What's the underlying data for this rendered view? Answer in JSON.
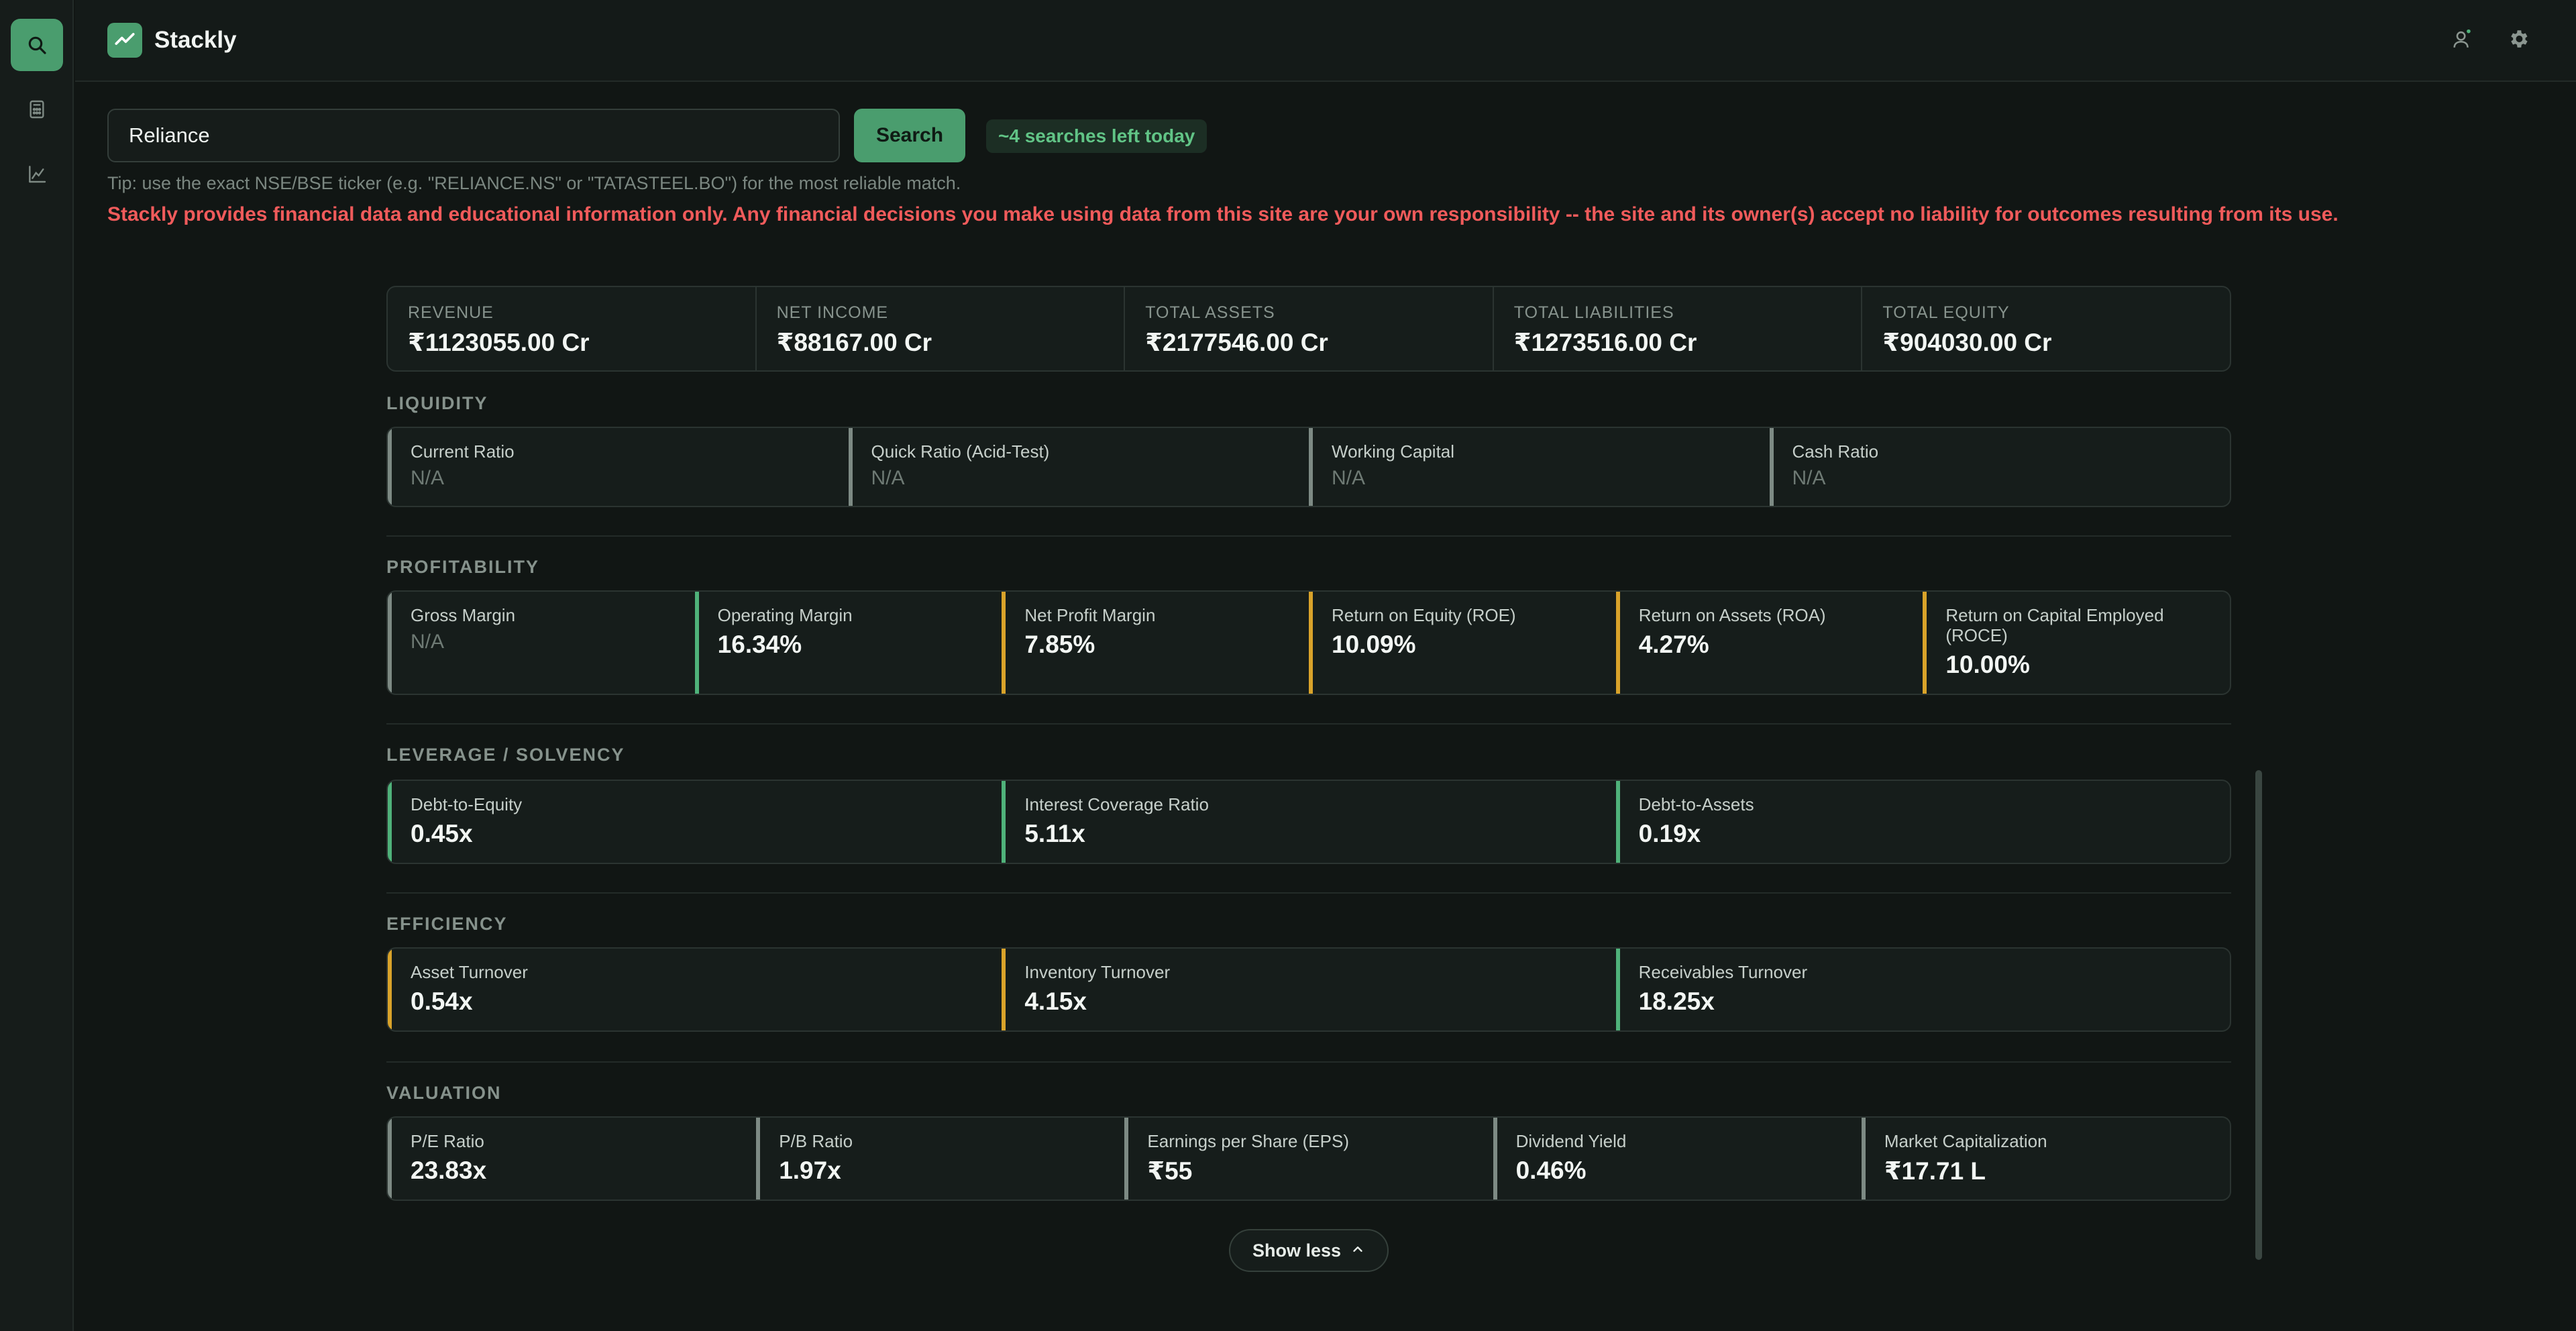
{
  "app": {
    "title": "Stackly"
  },
  "search": {
    "value": "Reliance",
    "button_label": "Search",
    "quota_label": "~4 searches left today"
  },
  "tip": "Tip: use the exact NSE/BSE ticker (e.g. \"RELIANCE.NS\" or \"TATASTEEL.BO\") for the most reliable match.",
  "disclaimer": "Stackly provides financial data and educational information only. Any financial decisions you make using data from this site are your own responsibility -- the site and its owner(s) accept no liability for outcomes resulting from its use.",
  "summary": [
    {
      "label": "Revenue",
      "value": "₹1123055.00 Cr"
    },
    {
      "label": "Net Income",
      "value": "₹88167.00 Cr"
    },
    {
      "label": "Total Assets",
      "value": "₹2177546.00 Cr"
    },
    {
      "label": "Total Liabilities",
      "value": "₹1273516.00 Cr"
    },
    {
      "label": "Total Equity",
      "value": "₹904030.00 Cr"
    }
  ],
  "sections": {
    "liquidity": {
      "title": "LIQUIDITY",
      "metrics": [
        {
          "label": "Current Ratio",
          "value": "N/A"
        },
        {
          "label": "Quick Ratio (Acid-Test)",
          "value": "N/A"
        },
        {
          "label": "Working Capital",
          "value": "N/A"
        },
        {
          "label": "Cash Ratio",
          "value": "N/A"
        }
      ]
    },
    "profitability": {
      "title": "PROFITABILITY",
      "metrics": [
        {
          "label": "Gross Margin",
          "value": "N/A"
        },
        {
          "label": "Operating Margin",
          "value": "16.34%"
        },
        {
          "label": "Net Profit Margin",
          "value": "7.85%"
        },
        {
          "label": "Return on Equity (ROE)",
          "value": "10.09%"
        },
        {
          "label": "Return on Assets (ROA)",
          "value": "4.27%"
        },
        {
          "label": "Return on Capital Employed (ROCE)",
          "value": "10.00%"
        }
      ]
    },
    "leverage": {
      "title": "LEVERAGE / SOLVENCY",
      "metrics": [
        {
          "label": "Debt-to-Equity",
          "value": "0.45x"
        },
        {
          "label": "Interest Coverage Ratio",
          "value": "5.11x"
        },
        {
          "label": "Debt-to-Assets",
          "value": "0.19x"
        }
      ]
    },
    "efficiency": {
      "title": "EFFICIENCY",
      "metrics": [
        {
          "label": "Asset Turnover",
          "value": "0.54x"
        },
        {
          "label": "Inventory Turnover",
          "value": "4.15x"
        },
        {
          "label": "Receivables Turnover",
          "value": "18.25x"
        }
      ]
    },
    "valuation": {
      "title": "VALUATION",
      "metrics": [
        {
          "label": "P/E Ratio",
          "value": "23.83x"
        },
        {
          "label": "P/B Ratio",
          "value": "1.97x"
        },
        {
          "label": "Earnings per Share (EPS)",
          "value": "₹55"
        },
        {
          "label": "Dividend Yield",
          "value": "0.46%"
        },
        {
          "label": "Market Capitalization",
          "value": "₹17.71 L"
        }
      ]
    }
  },
  "show_less_label": "Show less",
  "colors": {
    "accent": "#4a9d6e",
    "good": "#4fb27a",
    "warn": "#d9a32a",
    "neutral": "#7d8a84",
    "danger": "#f05b5b"
  }
}
